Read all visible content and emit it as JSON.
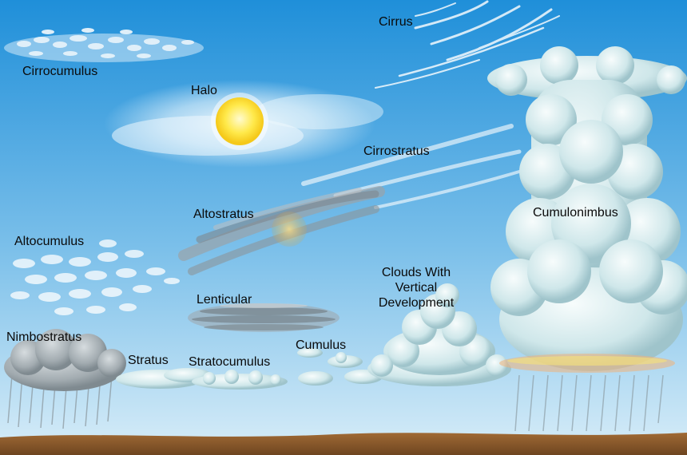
{
  "colors": {
    "sky_top": "#1f8fd9",
    "sky_bottom": "#d8edf8",
    "ground": "#8a5a2b",
    "sun": "#ffe94a",
    "cloud": "#e6f4f6",
    "dark_cloud": "#8e9599",
    "label_text": "#0a0a0a"
  },
  "labels": {
    "cirrocumulus": "Cirrocumulus",
    "cirrus": "Cirrus",
    "halo": "Halo",
    "cirrostratus": "Cirrostratus",
    "altostratus": "Altostratus",
    "cumulonimbus": "Cumulonimbus",
    "altocumulus": "Altocumulus",
    "clouds_vertical": [
      "Clouds With",
      "Vertical",
      "Development"
    ],
    "lenticular": "Lenticular",
    "nimbostratus": "Nimbostratus",
    "stratus": "Stratus",
    "stratocumulus": "Stratocumulus",
    "cumulus": "Cumulus"
  },
  "icons": {
    "sun": "sun-icon",
    "rain": "rain-streaks"
  }
}
